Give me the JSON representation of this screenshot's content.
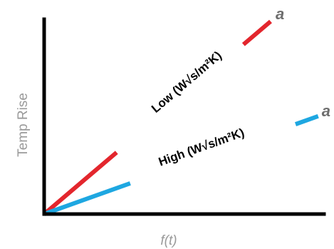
{
  "chart_data": {
    "type": "line",
    "xlabel": "f(t)",
    "ylabel": "Temp Rise",
    "series": [
      {
        "name": "Low (W√s/m²K)",
        "end_label": "a",
        "color": "#e3262d",
        "x": [
          0,
          1
        ],
        "y": [
          0,
          1
        ]
      },
      {
        "name": "High (W√s/m²K)",
        "end_label": "a",
        "color": "#1ea7e1",
        "x": [
          0,
          1
        ],
        "y": [
          0,
          0.42
        ]
      }
    ],
    "grid": false,
    "legend": "inline labels on lines"
  }
}
